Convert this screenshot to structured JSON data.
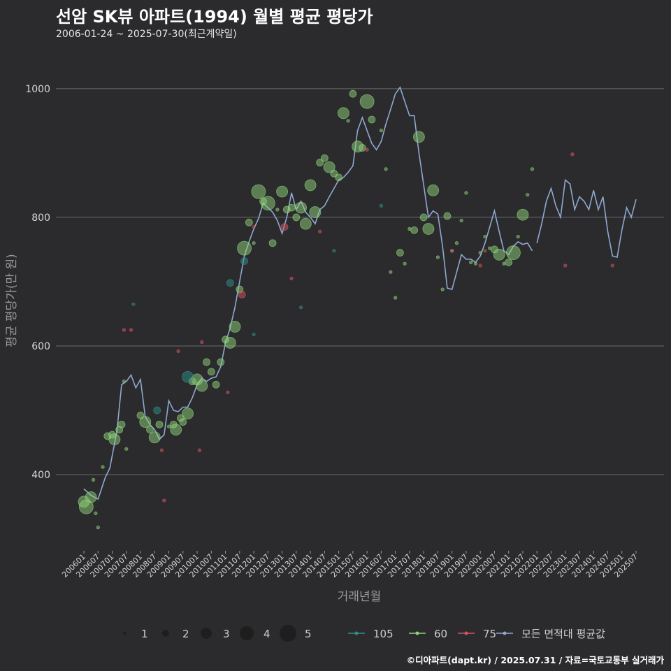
{
  "header": {
    "title": "선암 SK뷰 아파트(1994) 월별 평균 평당가",
    "subtitle": "2006-01-24 ~ 2025-07-30(최근계약일)"
  },
  "footer": {
    "credit": "©디아파트(dapt.kr) / 2025.07.31 / 자료=국토교통부 실거래가"
  },
  "colors": {
    "105": "#2f8f8a",
    "60": "#8fd17a",
    "75": "#d2555e",
    "avg": "#8fa8d0"
  },
  "chart_data": {
    "type": "scatter",
    "title": "선암 SK뷰 아파트(1994) 월별 평균 평당가",
    "xlabel": "거래년월",
    "ylabel": "평균 평당가(만 원)",
    "ylim": [
      285,
      1040
    ],
    "yticks": [
      400,
      600,
      800,
      1000
    ],
    "x_range": [
      "200601",
      "202507"
    ],
    "x_tick_labels": [
      "200601",
      "200607",
      "200701",
      "200707",
      "200801",
      "200807",
      "200901",
      "200907",
      "201001",
      "201007",
      "201101",
      "201107",
      "201201",
      "201207",
      "201301",
      "201307",
      "201401",
      "201407",
      "201501",
      "201507",
      "201601",
      "201607",
      "201701",
      "201707",
      "201801",
      "201807",
      "201901",
      "201907",
      "202001",
      "202007",
      "202101",
      "202107",
      "202201",
      "202207",
      "202301",
      "202307",
      "202401",
      "202407",
      "202501",
      "202507"
    ],
    "size_legend": {
      "label_values": [
        "1",
        "2",
        "3",
        "4",
        "5"
      ]
    },
    "color_legend": {
      "labels": [
        "105",
        "60",
        "75",
        "모든 면적대 평균값"
      ]
    },
    "series": [
      {
        "name": "모든 면적대 평균값",
        "type": "line",
        "points": [
          [
            "200601",
            378
          ],
          [
            "200604",
            368
          ],
          [
            "200607",
            362
          ],
          [
            "200610",
            395
          ],
          [
            "200612",
            410
          ],
          [
            "200703",
            468
          ],
          [
            "200705",
            540
          ],
          [
            "200707",
            545
          ],
          [
            "200709",
            555
          ],
          [
            "200711",
            535
          ],
          [
            "200801",
            548
          ],
          [
            "200803",
            490
          ],
          [
            "200805",
            478
          ],
          [
            "200807",
            470
          ],
          [
            "200809",
            455
          ],
          [
            "200811",
            462
          ],
          [
            "200901",
            515
          ],
          [
            "200903",
            500
          ],
          [
            "200905",
            498
          ],
          [
            "200907",
            505
          ],
          [
            "200909",
            505
          ],
          [
            "200911",
            520
          ],
          [
            "201001",
            540
          ],
          [
            "201003",
            550
          ],
          [
            "201005",
            545
          ],
          [
            "201007",
            550
          ],
          [
            "201009",
            552
          ],
          [
            "201011",
            568
          ],
          [
            "201101",
            605
          ],
          [
            "201103",
            628
          ],
          [
            "201105",
            660
          ],
          [
            "201107",
            700
          ],
          [
            "201109",
            740
          ],
          [
            "201111",
            762
          ],
          [
            "201201",
            782
          ],
          [
            "201203",
            798
          ],
          [
            "201205",
            822
          ],
          [
            "201207",
            815
          ],
          [
            "201209",
            808
          ],
          [
            "201211",
            795
          ],
          [
            "201301",
            775
          ],
          [
            "201303",
            800
          ],
          [
            "201305",
            838
          ],
          [
            "201307",
            812
          ],
          [
            "201309",
            825
          ],
          [
            "201311",
            808
          ],
          [
            "201401",
            800
          ],
          [
            "201403",
            790
          ],
          [
            "201405",
            812
          ],
          [
            "201407",
            818
          ],
          [
            "201409",
            832
          ],
          [
            "201411",
            845
          ],
          [
            "201501",
            858
          ],
          [
            "201503",
            862
          ],
          [
            "201505",
            870
          ],
          [
            "201507",
            880
          ],
          [
            "201509",
            935
          ],
          [
            "201511",
            955
          ],
          [
            "201601",
            935
          ],
          [
            "201603",
            915
          ],
          [
            "201605",
            905
          ],
          [
            "201607",
            918
          ],
          [
            "201609",
            945
          ],
          [
            "201611",
            968
          ],
          [
            "201701",
            992
          ],
          [
            "201703",
            1002
          ],
          [
            "201705",
            980
          ],
          [
            "201707",
            958
          ],
          [
            "201709",
            958
          ],
          [
            "201711",
            900
          ],
          [
            "201801",
            850
          ],
          [
            "201803",
            800
          ],
          [
            "201805",
            810
          ],
          [
            "201807",
            805
          ],
          [
            "201809",
            755
          ],
          [
            "201811",
            690
          ],
          [
            "201901",
            688
          ],
          [
            "201903",
            715
          ],
          [
            "201905",
            742
          ],
          [
            "201907",
            735
          ],
          [
            "201909",
            735
          ],
          [
            "201911",
            730
          ],
          [
            "202001",
            740
          ],
          [
            "202003",
            760
          ],
          [
            "202005",
            785
          ],
          [
            "202007",
            810
          ],
          [
            "202009",
            778
          ],
          [
            "202011",
            748
          ],
          [
            "202101",
            742
          ],
          [
            "202103",
            755
          ],
          [
            "202105",
            762
          ],
          [
            "202107",
            758
          ],
          [
            "202109",
            760
          ],
          [
            "202111",
            748
          ],
          [
            "202201",
            760
          ],
          [
            "202203",
            790
          ],
          [
            "202205",
            825
          ],
          [
            "202207",
            845
          ],
          [
            "202209",
            818
          ],
          [
            "202211",
            800
          ],
          [
            "202301",
            858
          ],
          [
            "202303",
            852
          ],
          [
            "202305",
            812
          ],
          [
            "202307",
            832
          ],
          [
            "202309",
            825
          ],
          [
            "202311",
            812
          ],
          [
            "202401",
            842
          ],
          [
            "202403",
            812
          ],
          [
            "202405",
            832
          ],
          [
            "202407",
            778
          ],
          [
            "202409",
            740
          ],
          [
            "202411",
            738
          ],
          [
            "202501",
            780
          ],
          [
            "202503",
            815
          ],
          [
            "202505",
            800
          ],
          [
            "202507",
            828
          ]
        ]
      },
      {
        "name": "60",
        "type": "scatter",
        "points": [
          [
            "200601",
            358,
            3
          ],
          [
            "200602",
            350,
            4
          ],
          [
            "200604",
            365,
            3
          ],
          [
            "200605",
            392,
            1
          ],
          [
            "200606",
            340,
            1
          ],
          [
            "200607",
            318,
            1
          ],
          [
            "200609",
            412,
            1
          ],
          [
            "200611",
            460,
            2
          ],
          [
            "200701",
            462,
            2
          ],
          [
            "200702",
            455,
            3
          ],
          [
            "200704",
            470,
            2
          ],
          [
            "200705",
            478,
            2
          ],
          [
            "200706",
            545,
            1
          ],
          [
            "200707",
            440,
            1
          ],
          [
            "200801",
            492,
            2
          ],
          [
            "200803",
            482,
            3
          ],
          [
            "200805",
            470,
            2
          ],
          [
            "200807",
            458,
            3
          ],
          [
            "200809",
            478,
            2
          ],
          [
            "200901",
            475,
            1
          ],
          [
            "200903",
            478,
            2
          ],
          [
            "200904",
            470,
            3
          ],
          [
            "200906",
            488,
            2
          ],
          [
            "200907",
            482,
            2
          ],
          [
            "200909",
            495,
            3
          ],
          [
            "200911",
            545,
            2
          ],
          [
            "201001",
            548,
            3
          ],
          [
            "201003",
            538,
            3
          ],
          [
            "201005",
            575,
            2
          ],
          [
            "201007",
            560,
            2
          ],
          [
            "201009",
            540,
            2
          ],
          [
            "201011",
            575,
            2
          ],
          [
            "201101",
            610,
            2
          ],
          [
            "201103",
            605,
            3
          ],
          [
            "201105",
            630,
            3
          ],
          [
            "201107",
            688,
            2
          ],
          [
            "201109",
            752,
            4
          ],
          [
            "201111",
            792,
            2
          ],
          [
            "201201",
            760,
            1
          ],
          [
            "201203",
            840,
            4
          ],
          [
            "201205",
            825,
            2
          ],
          [
            "201207",
            822,
            4
          ],
          [
            "201209",
            760,
            2
          ],
          [
            "201211",
            812,
            1
          ],
          [
            "201301",
            840,
            3
          ],
          [
            "201303",
            812,
            2
          ],
          [
            "201305",
            815,
            2
          ],
          [
            "201307",
            800,
            2
          ],
          [
            "201309",
            815,
            3
          ],
          [
            "201311",
            790,
            3
          ],
          [
            "201401",
            850,
            3
          ],
          [
            "201403",
            808,
            3
          ],
          [
            "201405",
            885,
            2
          ],
          [
            "201407",
            892,
            2
          ],
          [
            "201409",
            878,
            3
          ],
          [
            "201411",
            868,
            2
          ],
          [
            "201501",
            862,
            2
          ],
          [
            "201503",
            962,
            3
          ],
          [
            "201505",
            950,
            1
          ],
          [
            "201507",
            992,
            2
          ],
          [
            "201509",
            910,
            3
          ],
          [
            "201511",
            908,
            2
          ],
          [
            "201601",
            980,
            4
          ],
          [
            "201603",
            952,
            2
          ],
          [
            "201607",
            935,
            1
          ],
          [
            "201609",
            875,
            1
          ],
          [
            "201611",
            715,
            1
          ],
          [
            "201701",
            675,
            1
          ],
          [
            "201703",
            745,
            2
          ],
          [
            "201705",
            728,
            1
          ],
          [
            "201707",
            782,
            1
          ],
          [
            "201709",
            780,
            2
          ],
          [
            "201711",
            925,
            3
          ],
          [
            "201801",
            800,
            2
          ],
          [
            "201803",
            782,
            3
          ],
          [
            "201805",
            842,
            3
          ],
          [
            "201807",
            738,
            1
          ],
          [
            "201809",
            688,
            1
          ],
          [
            "201811",
            802,
            2
          ],
          [
            "201901",
            748,
            1
          ],
          [
            "201903",
            760,
            1
          ],
          [
            "201905",
            795,
            1
          ],
          [
            "201907",
            838,
            1
          ],
          [
            "201909",
            730,
            1
          ],
          [
            "201911",
            728,
            1
          ],
          [
            "202001",
            745,
            1
          ],
          [
            "202003",
            770,
            1
          ],
          [
            "202005",
            752,
            1
          ],
          [
            "202007",
            750,
            2
          ],
          [
            "202009",
            742,
            3
          ],
          [
            "202011",
            728,
            1
          ],
          [
            "202101",
            730,
            2
          ],
          [
            "202103",
            745,
            4
          ],
          [
            "202105",
            770,
            1
          ],
          [
            "202107",
            804,
            3
          ],
          [
            "202109",
            835,
            1
          ],
          [
            "202111",
            875,
            1
          ]
        ]
      },
      {
        "name": "105",
        "type": "scatter",
        "points": [
          [
            "200710",
            665,
            1
          ],
          [
            "200808",
            500,
            2
          ],
          [
            "200909",
            552,
            3
          ],
          [
            "201103",
            698,
            2
          ],
          [
            "201109",
            732,
            2
          ],
          [
            "201201",
            618,
            1
          ],
          [
            "201309",
            660,
            1
          ],
          [
            "201411",
            748,
            1
          ],
          [
            "201607",
            818,
            1
          ]
        ]
      },
      {
        "name": "75",
        "type": "scatter",
        "points": [
          [
            "200706",
            625,
            1
          ],
          [
            "200709",
            625,
            1
          ],
          [
            "200810",
            438,
            1
          ],
          [
            "200811",
            360,
            1
          ],
          [
            "200905",
            592,
            1
          ],
          [
            "201002",
            438,
            1
          ],
          [
            "201003",
            606,
            1
          ],
          [
            "201102",
            528,
            1
          ],
          [
            "201108",
            680,
            2
          ],
          [
            "201201",
            785,
            1
          ],
          [
            "201302",
            785,
            2
          ],
          [
            "201305",
            705,
            1
          ],
          [
            "201405",
            778,
            1
          ],
          [
            "201601",
            905,
            1
          ],
          [
            "201901",
            748,
            1
          ],
          [
            "202001",
            725,
            1
          ],
          [
            "202003",
            748,
            1
          ],
          [
            "202301",
            725,
            1
          ],
          [
            "202304",
            898,
            1
          ],
          [
            "202409",
            725,
            1
          ]
        ]
      }
    ]
  }
}
